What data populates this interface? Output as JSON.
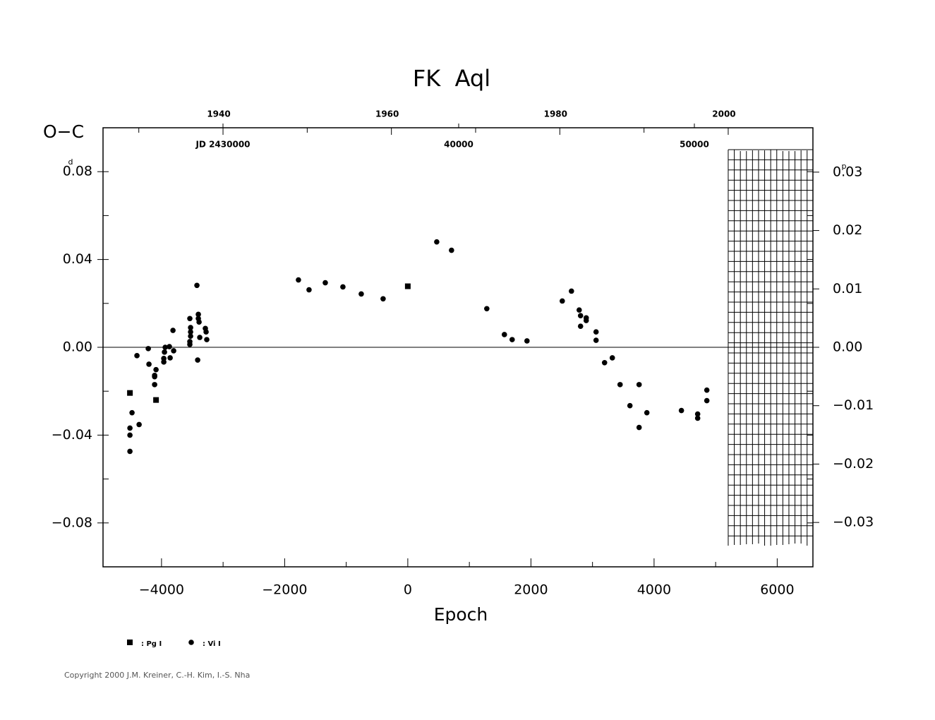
{
  "chart_data": {
    "type": "scatter",
    "title": "FK  Aql",
    "y_label": "O−C",
    "y_unit": "d",
    "y2_unit": "p",
    "x_label": "Epoch",
    "xlim": [
      -4950,
      6580
    ],
    "ylim": [
      -0.1,
      0.1
    ],
    "y2lim": [
      -0.0376,
      0.0376
    ],
    "xticks": [
      {
        "value": -4000,
        "label": "−4000"
      },
      {
        "value": -2000,
        "label": "−2000"
      },
      0,
      2000,
      4000,
      6000
    ],
    "xminor": [
      -3000,
      -1000,
      1000,
      3000,
      5000
    ],
    "yticks": [
      0.08,
      0.04,
      {
        "value": 0,
        "label": "0.00"
      },
      {
        "value": -0.04,
        "label": "−0.04"
      },
      {
        "value": -0.08,
        "label": "−0.08"
      }
    ],
    "yminor": [
      0.06,
      0.02,
      -0.02,
      -0.06
    ],
    "y2ticks": [
      0.03,
      0.02,
      0.01,
      {
        "value": 0,
        "label": "0.00"
      },
      {
        "value": -0.01,
        "label": "−0.01"
      },
      {
        "value": -0.02,
        "label": "−0.02"
      },
      {
        "value": -0.03,
        "label": "−0.03"
      }
    ],
    "year_lim": [
      1925.75,
      2010.06
    ],
    "year_ticks": [
      1940,
      1960,
      1980,
      2000
    ],
    "year_minor": [
      1930,
      1950,
      1970,
      1990
    ],
    "jd_lim": [
      2424910,
      2455030
    ],
    "jd_ticks": [
      {
        "value": 2430000,
        "label": "JD 2430000"
      },
      {
        "value": 2440000,
        "label": "40000"
      },
      {
        "value": 2450000,
        "label": "50000"
      }
    ],
    "zero_line": true,
    "series": [
      {
        "name": ": Pg I",
        "marker": "square",
        "color": "#000000",
        "x": [
          -4513,
          -4089,
          0
        ],
        "values": [
          -0.0208,
          -0.024,
          0.0278
        ]
      },
      {
        "name": ": Vi I",
        "marker": "circle",
        "color": "#000000",
        "x": [
          -4513,
          -4513,
          -4513,
          -4479,
          -4399,
          -4364,
          -4215,
          -4204,
          -4112,
          -4112,
          -4089,
          -4112,
          -3963,
          -3963,
          -3952,
          -3940,
          -3872,
          -3860,
          -3814,
          -3803,
          -3540,
          -3528,
          -3528,
          -3528,
          -3540,
          -3540,
          -3425,
          -3413,
          -3402,
          -3402,
          -3390,
          -3379,
          -3288,
          -3276,
          -3265,
          -1776,
          -1604,
          -1340,
          -1054,
          -756,
          -401,
          470,
          710,
          1283,
          1569,
          1695,
          1936,
          2509,
          2658,
          2784,
          2806,
          2806,
          2898,
          2898,
          3058,
          3058,
          3196,
          3322,
          3448,
          3608,
          3757,
          3757,
          3883,
          4444,
          4708,
          4708,
          4857,
          4857
        ],
        "values": [
          -0.0368,
          -0.04,
          -0.0474,
          -0.0298,
          -0.0038,
          -0.0352,
          -0.0006,
          -0.0077,
          -0.0128,
          -0.0134,
          -0.0102,
          -0.017,
          -0.0051,
          -0.0067,
          -0.0022,
          0.0,
          0.0003,
          -0.0048,
          0.0077,
          -0.0016,
          0.0131,
          0.009,
          0.007,
          0.0051,
          0.0026,
          0.0013,
          0.0282,
          -0.0058,
          0.015,
          0.0131,
          0.0115,
          0.0045,
          0.0086,
          0.007,
          0.0035,
          0.0307,
          0.0262,
          0.0294,
          0.0275,
          0.0243,
          0.0221,
          0.048,
          0.0442,
          0.0176,
          0.0058,
          0.0035,
          0.0029,
          0.0211,
          0.0256,
          0.017,
          0.0144,
          0.0096,
          0.0134,
          0.0122,
          0.007,
          0.0032,
          -0.007,
          -0.0048,
          -0.017,
          -0.0266,
          -0.017,
          -0.0365,
          -0.0298,
          -0.0288,
          -0.0304,
          -0.0323,
          -0.0195,
          -0.0243
        ]
      }
    ]
  },
  "copyright": "Copyright 2000 J.M. Kreiner, C.-H. Kim, I.-S. Nha"
}
